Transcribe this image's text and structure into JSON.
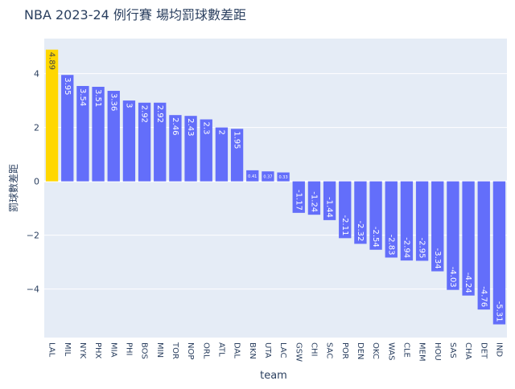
{
  "chart_data": {
    "type": "bar",
    "title": "NBA 2023-24 例行賽 場均罰球數差距",
    "xlabel": "team",
    "ylabel": "罰球數差距",
    "categories": [
      "LAL",
      "MIL",
      "NYK",
      "PHX",
      "MIA",
      "PHI",
      "BOS",
      "MIN",
      "TOR",
      "NOP",
      "ORL",
      "ATL",
      "DAL",
      "BKN",
      "UTA",
      "LAC",
      "GSW",
      "CHI",
      "SAC",
      "POR",
      "DEN",
      "OKC",
      "WAS",
      "CLE",
      "MEM",
      "HOU",
      "SAS",
      "CHA",
      "DET",
      "IND"
    ],
    "values": [
      4.89,
      3.95,
      3.54,
      3.51,
      3.36,
      3,
      2.92,
      2.92,
      2.46,
      2.43,
      2.3,
      2,
      1.95,
      0.41,
      0.37,
      0.33,
      -1.17,
      -1.24,
      -1.44,
      -2.11,
      -2.32,
      -2.54,
      -2.83,
      -2.94,
      -2.95,
      -3.34,
      -4.03,
      -4.24,
      -4.76,
      -5.31
    ],
    "data_labels": [
      "4.89",
      "3.95",
      "3.54",
      "3.51",
      "3.36",
      "3",
      "2.92",
      "2.92",
      "2.46",
      "2.43",
      "2.3",
      "2",
      "1.95",
      "0.41",
      "0.37",
      "0.33",
      "-1.17",
      "-1.24",
      "-1.44",
      "-2.11",
      "-2.32",
      "-2.54",
      "-2.83",
      "-2.94",
      "-2.95",
      "-3.34",
      "-4.03",
      "-4.24",
      "-4.76",
      "-5.31"
    ],
    "ylim": [
      -5.8,
      5.3
    ],
    "yticks": [
      -4,
      -2,
      0,
      2,
      4
    ],
    "ytick_labels": [
      "−4",
      "−2",
      "0",
      "2",
      "4"
    ],
    "grid": true,
    "colors": {
      "default": "#636efa",
      "highlight": "#ffd700",
      "plot_bg": "#e5ecf6",
      "grid": "#ffffff"
    },
    "highlight_category": "LAL"
  }
}
